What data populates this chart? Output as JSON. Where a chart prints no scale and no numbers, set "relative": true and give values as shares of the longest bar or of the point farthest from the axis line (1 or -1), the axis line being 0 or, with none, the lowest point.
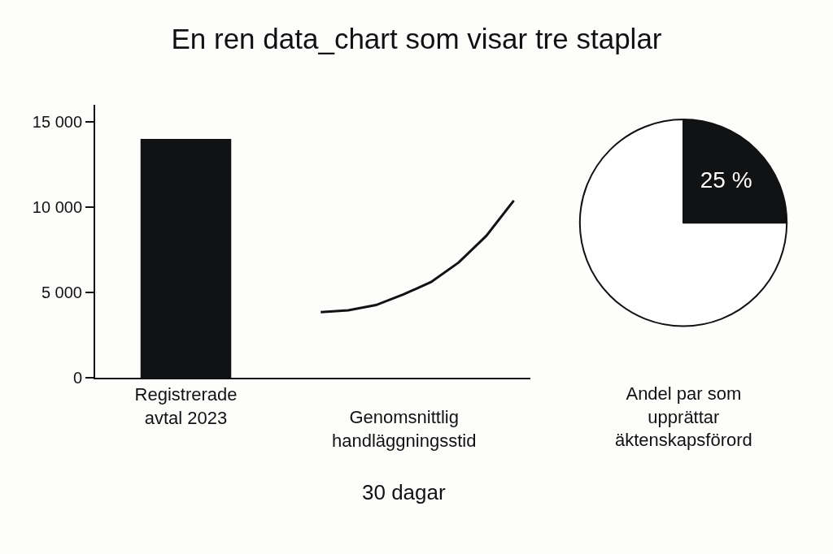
{
  "chart_data": [
    {
      "type": "bar",
      "title": "En ren data_chart som visar tre staplar",
      "categories": [
        "Registrerade avtal 2023"
      ],
      "values": [
        14000
      ],
      "color": "#111213",
      "ylim": [
        0,
        16000
      ],
      "yticks": [
        0,
        {
          "value": 5000,
          "label": "5 000"
        },
        {
          "value": 10000,
          "label": "10 000"
        },
        {
          "value": 15000,
          "label": "15 000"
        }
      ],
      "grid": false,
      "legend": false
    },
    {
      "type": "line",
      "xlabel": "Genomsnittlig handläggningsstid",
      "annotations": [
        "30 dagar"
      ],
      "categories": [
        null,
        null,
        null,
        null,
        null,
        null,
        null,
        null
      ],
      "relative": true,
      "values": [
        0.37,
        0.38,
        0.41,
        0.47,
        0.54,
        0.65,
        0.8,
        1
      ],
      "color": "#111213",
      "marker": "none",
      "line_style": "solid",
      "grid": false,
      "legend": false
    },
    {
      "type": "pie",
      "xlabel": "Andel par som upprättar äktenskapsförord",
      "categories": [
        null,
        null
      ],
      "values": [
        25,
        75
      ],
      "colors": [
        "#111213",
        "#ffffff"
      ],
      "value_labels": [
        "25 %",
        null
      ],
      "legend": false
    }
  ]
}
